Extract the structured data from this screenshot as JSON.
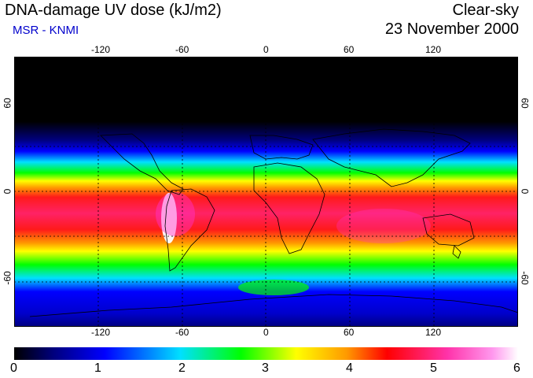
{
  "header": {
    "title": "DNA-damage UV dose (kJ/m2)",
    "subtitle": "MSR - KNMI",
    "sky_condition": "Clear-sky",
    "date": "23 November 2000"
  },
  "map": {
    "lon_ticks": [
      "-120",
      "-60",
      "0",
      "60",
      "120"
    ],
    "lat_ticks": [
      "60",
      "0",
      "-60"
    ],
    "lon_range": [
      -180,
      180
    ],
    "lat_range": [
      -90,
      90
    ],
    "gridlines": "dotted",
    "colors": {
      "black": "#000000",
      "navy": "#000080",
      "blue": "#0000ff",
      "cyan": "#00e0ff",
      "green": "#00ff00",
      "yellow": "#ffff00",
      "orange": "#ff9900",
      "red": "#ff0000",
      "magenta": "#ff33cc",
      "white": "#ffffff"
    }
  },
  "colorbar": {
    "labels": [
      "0",
      "1",
      "2",
      "3",
      "4",
      "5",
      "6"
    ],
    "min": 0,
    "max": 6
  }
}
